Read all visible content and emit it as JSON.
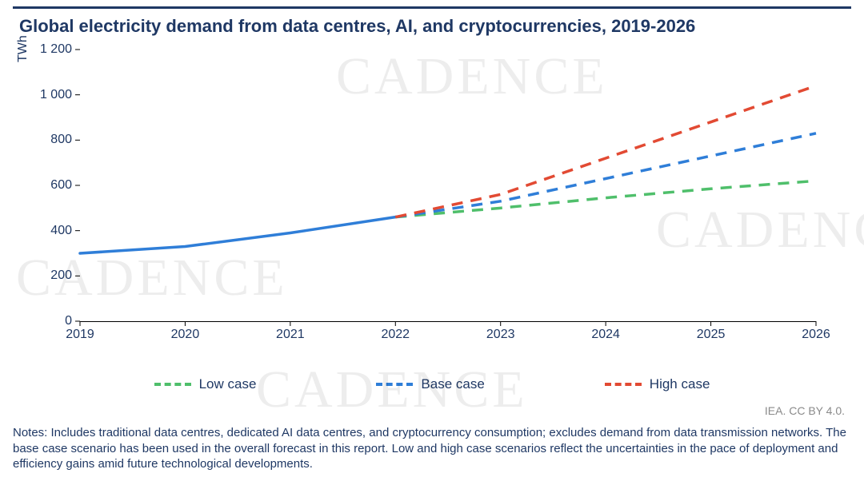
{
  "title": "Global electricity demand from data centres, AI, and cryptocurrencies, 2019-2026",
  "ylabel": "TWh",
  "attribution": "IEA. CC BY 4.0.",
  "notes": "Notes: Includes traditional data centres, dedicated AI data centres, and cryptocurrency consumption; excludes demand from data transmission networks. The base case scenario has been used in the overall forecast in this report. Low and high case scenarios reflect the uncertainties in the pace of deployment and efficiency gains amid future technological developments.",
  "watermark": {
    "text": "CADENCE",
    "fontsize": 66
  },
  "chart": {
    "type": "line",
    "background_color": "#ffffff",
    "title_color": "#1f3864",
    "axis_color": "#000000",
    "tick_fontsize": 16,
    "tick_color": "#1f3864",
    "line_width": 3.5,
    "x": {
      "min": 2019,
      "max": 2026,
      "ticks": [
        2019,
        2020,
        2021,
        2022,
        2023,
        2024,
        2025,
        2026
      ]
    },
    "y": {
      "min": 0,
      "max": 1200,
      "ticks": [
        0,
        200,
        400,
        600,
        800,
        1000,
        1200
      ],
      "tick_labels": [
        "0",
        "200",
        "400",
        "600",
        "800",
        "1 000",
        "1 200"
      ]
    },
    "historical": {
      "color": "#2f7ed8",
      "style": "solid",
      "x": [
        2019,
        2020,
        2021,
        2022
      ],
      "y": [
        300,
        330,
        390,
        460
      ]
    },
    "series": [
      {
        "id": "low",
        "label": "Low case",
        "color": "#4fbf6b",
        "style": "dashed",
        "x": [
          2022,
          2023,
          2024,
          2025,
          2026
        ],
        "y": [
          460,
          500,
          545,
          585,
          620
        ]
      },
      {
        "id": "base",
        "label": "Base case",
        "color": "#2f7ed8",
        "style": "dashed",
        "x": [
          2022,
          2023,
          2024,
          2025,
          2026
        ],
        "y": [
          460,
          530,
          630,
          730,
          830
        ]
      },
      {
        "id": "high",
        "label": "High case",
        "color": "#e24a33",
        "style": "dashed",
        "x": [
          2022,
          2023,
          2024,
          2025,
          2026
        ],
        "y": [
          460,
          560,
          720,
          880,
          1040
        ]
      }
    ]
  }
}
